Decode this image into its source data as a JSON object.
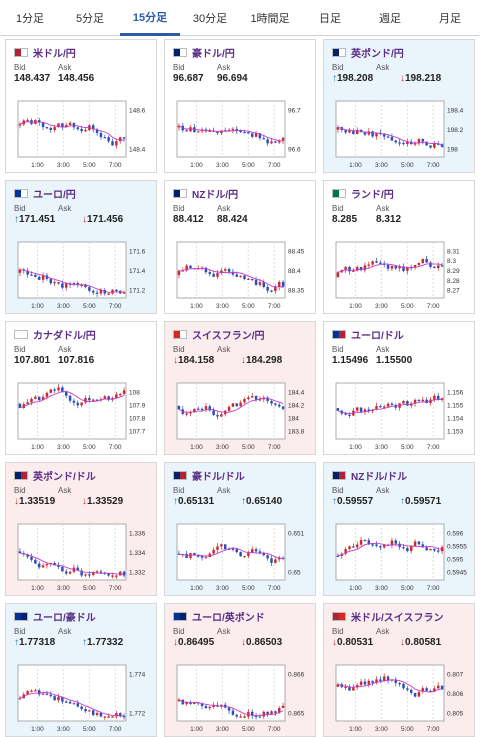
{
  "tabs": [
    {
      "label": "1分足",
      "active": false
    },
    {
      "label": "5分足",
      "active": false
    },
    {
      "label": "15分足",
      "active": true
    },
    {
      "label": "30分足",
      "active": false
    },
    {
      "label": "1時間足",
      "active": false
    },
    {
      "label": "日足",
      "active": false
    },
    {
      "label": "週足",
      "active": false
    },
    {
      "label": "月足",
      "active": false
    }
  ],
  "colors": {
    "up": "#cc2b2b",
    "down": "#2a4fb5",
    "ma": "#c23bd0",
    "accent": "#2b5aa8"
  },
  "labels": {
    "bid": "Bid",
    "ask": "Ask"
  },
  "cards": [
    {
      "pair": "米ドル/円",
      "flag": "us-jp-flag-icon",
      "trend": "none",
      "bid_arrow": "",
      "bid": "148.437",
      "ask_arrow": "",
      "ask": "148.456",
      "yticks": [
        "148.6",
        "148.4"
      ],
      "xticks": [
        "1:00",
        "3:00",
        "5:00",
        "7:00"
      ]
    },
    {
      "pair": "豪ドル/円",
      "flag": "au-jp-flag-icon",
      "trend": "none",
      "bid_arrow": "",
      "bid": "96.687",
      "ask_arrow": "",
      "ask": "96.694",
      "yticks": [
        "96.7",
        "96.6"
      ],
      "xticks": [
        "1:00",
        "3:00",
        "5:00",
        "7:00"
      ]
    },
    {
      "pair": "英ポンド/円",
      "flag": "gb-jp-flag-icon",
      "trend": "up",
      "bid_arrow": "↑",
      "bid": "198.208",
      "ask_arrow": "↓",
      "ask": "198.218",
      "yticks": [
        "198.4",
        "198.2",
        "198"
      ],
      "xticks": [
        "1:00",
        "3:00",
        "5:00",
        "7:00"
      ]
    },
    {
      "pair": "ユーロ/円",
      "flag": "eu-jp-flag-icon",
      "trend": "up",
      "bid_arrow": "↑",
      "bid": "171.451",
      "ask_arrow": "↓",
      "ask": "171.456",
      "yticks": [
        "171.6",
        "171.4",
        "171.2"
      ],
      "xticks": [
        "1:00",
        "3:00",
        "5:00",
        "7:00"
      ]
    },
    {
      "pair": "NZドル/円",
      "flag": "nz-jp-flag-icon",
      "trend": "none",
      "bid_arrow": "",
      "bid": "88.412",
      "ask_arrow": "",
      "ask": "88.424",
      "yticks": [
        "88.45",
        "88.4",
        "88.35"
      ],
      "xticks": [
        "1:00",
        "3:00",
        "5:00",
        "7:00"
      ]
    },
    {
      "pair": "ランド/円",
      "flag": "za-jp-flag-icon",
      "trend": "none",
      "bid_arrow": "",
      "bid": "8.285",
      "ask_arrow": "",
      "ask": "8.312",
      "yticks": [
        "8.31",
        "8.3",
        "8.29",
        "8.28",
        "8.27"
      ],
      "xticks": [
        "1:00",
        "3:00",
        "5:00",
        "7:00"
      ]
    },
    {
      "pair": "カナダドル/円",
      "flag": "ca-jp-flag-icon",
      "trend": "none",
      "bid_arrow": "",
      "bid": "107.801",
      "ask_arrow": "",
      "ask": "107.816",
      "yticks": [
        "108",
        "107.9",
        "107.8",
        "107.7"
      ],
      "xticks": [
        "1:00",
        "3:00",
        "5:00",
        "7:00"
      ]
    },
    {
      "pair": "スイスフラン/円",
      "flag": "ch-jp-flag-icon",
      "trend": "down",
      "bid_arrow": "↓",
      "bid": "184.158",
      "ask_arrow": "↓",
      "ask": "184.298",
      "yticks": [
        "184.4",
        "184.2",
        "184",
        "183.8"
      ],
      "xticks": [
        "1:00",
        "3:00",
        "5:00",
        "7:00"
      ]
    },
    {
      "pair": "ユーロ/ドル",
      "flag": "eu-us-flag-icon",
      "trend": "none",
      "bid_arrow": "",
      "bid": "1.15496",
      "ask_arrow": "",
      "ask": "1.15500",
      "yticks": [
        "1.156",
        "1.155",
        "1.154",
        "1.153"
      ],
      "xticks": [
        "1:00",
        "3:00",
        "5:00",
        "7:00"
      ]
    },
    {
      "pair": "英ポンド/ドル",
      "flag": "gb-us-flag-icon",
      "trend": "down",
      "bid_arrow": "↓",
      "bid": "1.33519",
      "ask_arrow": "↓",
      "ask": "1.33529",
      "yticks": [
        "1.336",
        "1.334",
        "1.332"
      ],
      "xticks": [
        "1:00",
        "3:00",
        "5:00",
        "7:00"
      ]
    },
    {
      "pair": "豪ドル/ドル",
      "flag": "au-us-flag-icon",
      "trend": "up",
      "bid_arrow": "↑",
      "bid": "0.65131",
      "ask_arrow": "↑",
      "ask": "0.65140",
      "yticks": [
        "0.651",
        "0.65"
      ],
      "xticks": [
        "1:00",
        "3:00",
        "5:00",
        "7:00"
      ]
    },
    {
      "pair": "NZドル/ドル",
      "flag": "nz-us-flag-icon",
      "trend": "up",
      "bid_arrow": "↑",
      "bid": "0.59557",
      "ask_arrow": "↑",
      "ask": "0.59571",
      "yticks": [
        "0.596",
        "0.5955",
        "0.595",
        "0.5945"
      ],
      "xticks": [
        "1:00",
        "3:00",
        "5:00",
        "7:00"
      ]
    },
    {
      "pair": "ユーロ/豪ドル",
      "flag": "eu-au-flag-icon",
      "trend": "up",
      "bid_arrow": "↑",
      "bid": "1.77318",
      "ask_arrow": "↑",
      "ask": "1.77332",
      "yticks": [
        "1.774",
        "1.772"
      ],
      "xticks": [
        "1:00",
        "3:00",
        "5:00",
        "7:00"
      ]
    },
    {
      "pair": "ユーロ/英ポンド",
      "flag": "eu-gb-flag-icon",
      "trend": "down",
      "bid_arrow": "↓",
      "bid": "0.86495",
      "ask_arrow": "↓",
      "ask": "0.86503",
      "yticks": [
        "0.866",
        "0.865"
      ],
      "xticks": [
        "1:00",
        "3:00",
        "5:00",
        "7:00"
      ]
    },
    {
      "pair": "米ドル/スイスフラン",
      "flag": "us-ch-flag-icon",
      "trend": "down",
      "bid_arrow": "↓",
      "bid": "0.80531",
      "ask_arrow": "↓",
      "ask": "0.80581",
      "yticks": [
        "0.807",
        "0.806",
        "0.805"
      ],
      "xticks": [
        "1:00",
        "3:00",
        "5:00",
        "7:00"
      ]
    }
  ]
}
